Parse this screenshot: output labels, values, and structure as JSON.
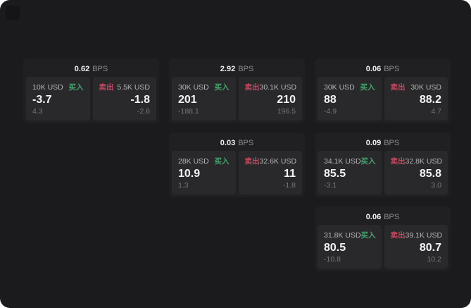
{
  "colors": {
    "canvas_bg": "#1b1b1d",
    "card_bg": "#202022",
    "panel_bg": "#29292b",
    "buy_green": "#44a46d",
    "sell_red": "#c2485f"
  },
  "labels": {
    "bps_unit": "BPS",
    "buy": "买入",
    "sell": "卖出"
  },
  "cards": [
    {
      "row": 1,
      "col": 1,
      "bps": "0.62",
      "buy": {
        "amount": "10K USD",
        "price": "-3.7",
        "delta": "4.3"
      },
      "sell": {
        "amount": "5.5K USD",
        "price": "-1.8",
        "delta": "-2.6"
      }
    },
    {
      "row": 1,
      "col": 2,
      "bps": "2.92",
      "buy": {
        "amount": "30K USD",
        "price": "201",
        "delta": "-188.1"
      },
      "sell": {
        "amount": "30.1K USD",
        "price": "210",
        "delta": "196.5"
      }
    },
    {
      "row": 1,
      "col": 3,
      "bps": "0.06",
      "buy": {
        "amount": "30K USD",
        "price": "88",
        "delta": "-4.9"
      },
      "sell": {
        "amount": "30K USD",
        "price": "88.2",
        "delta": "4.7"
      }
    },
    {
      "row": 2,
      "col": 2,
      "bps": "0.03",
      "buy": {
        "amount": "28K USD",
        "price": "10.9",
        "delta": "1.3"
      },
      "sell": {
        "amount": "32.6K USD",
        "price": "11",
        "delta": "-1.8"
      }
    },
    {
      "row": 2,
      "col": 3,
      "bps": "0.09",
      "buy": {
        "amount": "34.1K USD",
        "price": "85.5",
        "delta": "-3.1"
      },
      "sell": {
        "amount": "32.8K USD",
        "price": "85.8",
        "delta": "3.0"
      }
    },
    {
      "row": 3,
      "col": 3,
      "bps": "0.06",
      "buy": {
        "amount": "31.8K USD",
        "price": "80.5",
        "delta": "-10.8"
      },
      "sell": {
        "amount": "39.1K USD",
        "price": "80.7",
        "delta": "10.2"
      }
    }
  ]
}
